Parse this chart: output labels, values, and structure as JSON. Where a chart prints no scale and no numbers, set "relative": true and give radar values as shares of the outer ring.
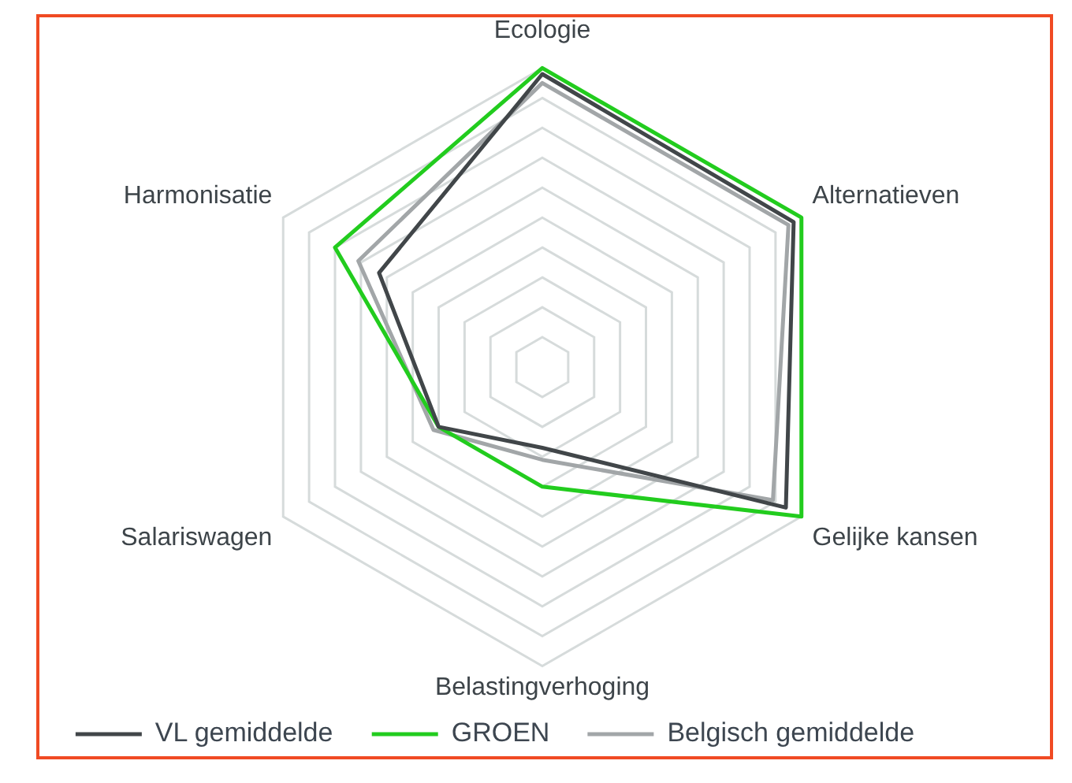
{
  "chart_data": {
    "type": "radar",
    "relative": true,
    "categories": [
      "Ecologie",
      "Alternatieven",
      "Gelijke kansen",
      "Belastingverhoging",
      "Salariswagen",
      "Harmonisatie"
    ],
    "series": [
      {
        "name": "VL gemiddelde",
        "color": "#414649",
        "values": [
          0.98,
          0.97,
          0.94,
          0.27,
          0.4,
          0.63
        ]
      },
      {
        "name": "GROEN",
        "color": "#22cc1e",
        "values": [
          1.0,
          1.0,
          1.0,
          0.4,
          0.4,
          0.8
        ]
      },
      {
        "name": "Belgisch gemiddelde",
        "color": "#a2a6a8",
        "values": [
          0.95,
          0.95,
          0.89,
          0.31,
          0.42,
          0.71
        ]
      }
    ],
    "grid": true,
    "legend": "bottom",
    "marker": "none",
    "line_style": "solid"
  }
}
